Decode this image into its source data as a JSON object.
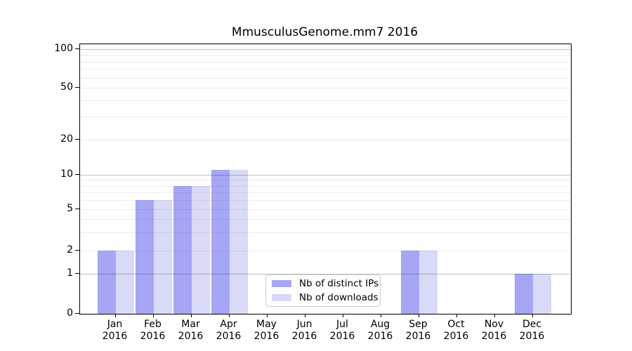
{
  "chart_data": {
    "type": "bar",
    "title": "MmusculusGenome.mm7 2016",
    "x_categories": [
      {
        "month": "Jan",
        "year": "2016"
      },
      {
        "month": "Feb",
        "year": "2016"
      },
      {
        "month": "Mar",
        "year": "2016"
      },
      {
        "month": "Apr",
        "year": "2016"
      },
      {
        "month": "May",
        "year": "2016"
      },
      {
        "month": "Jun",
        "year": "2016"
      },
      {
        "month": "Jul",
        "year": "2016"
      },
      {
        "month": "Aug",
        "year": "2016"
      },
      {
        "month": "Sep",
        "year": "2016"
      },
      {
        "month": "Oct",
        "year": "2016"
      },
      {
        "month": "Nov",
        "year": "2016"
      },
      {
        "month": "Dec",
        "year": "2016"
      }
    ],
    "series": [
      {
        "name": "Nb of distinct IPs",
        "color": "#a6a6f5",
        "values": [
          2,
          6,
          8,
          11,
          0,
          0,
          0,
          0,
          2,
          0,
          0,
          1
        ]
      },
      {
        "name": "Nb of downloads",
        "color": "#d9d9f8",
        "values": [
          2,
          6,
          8,
          11,
          0,
          0,
          0,
          0,
          2,
          0,
          0,
          1
        ]
      }
    ],
    "y_axis": {
      "scale": "log above 1, linear 0-1",
      "tick_values": [
        100,
        50,
        20,
        10,
        5,
        2,
        1,
        0
      ],
      "ylim": [
        0,
        110
      ],
      "grid": "horizontal, major at 1/10/100, minor at other log steps"
    },
    "legend_position": "inside lower center"
  }
}
